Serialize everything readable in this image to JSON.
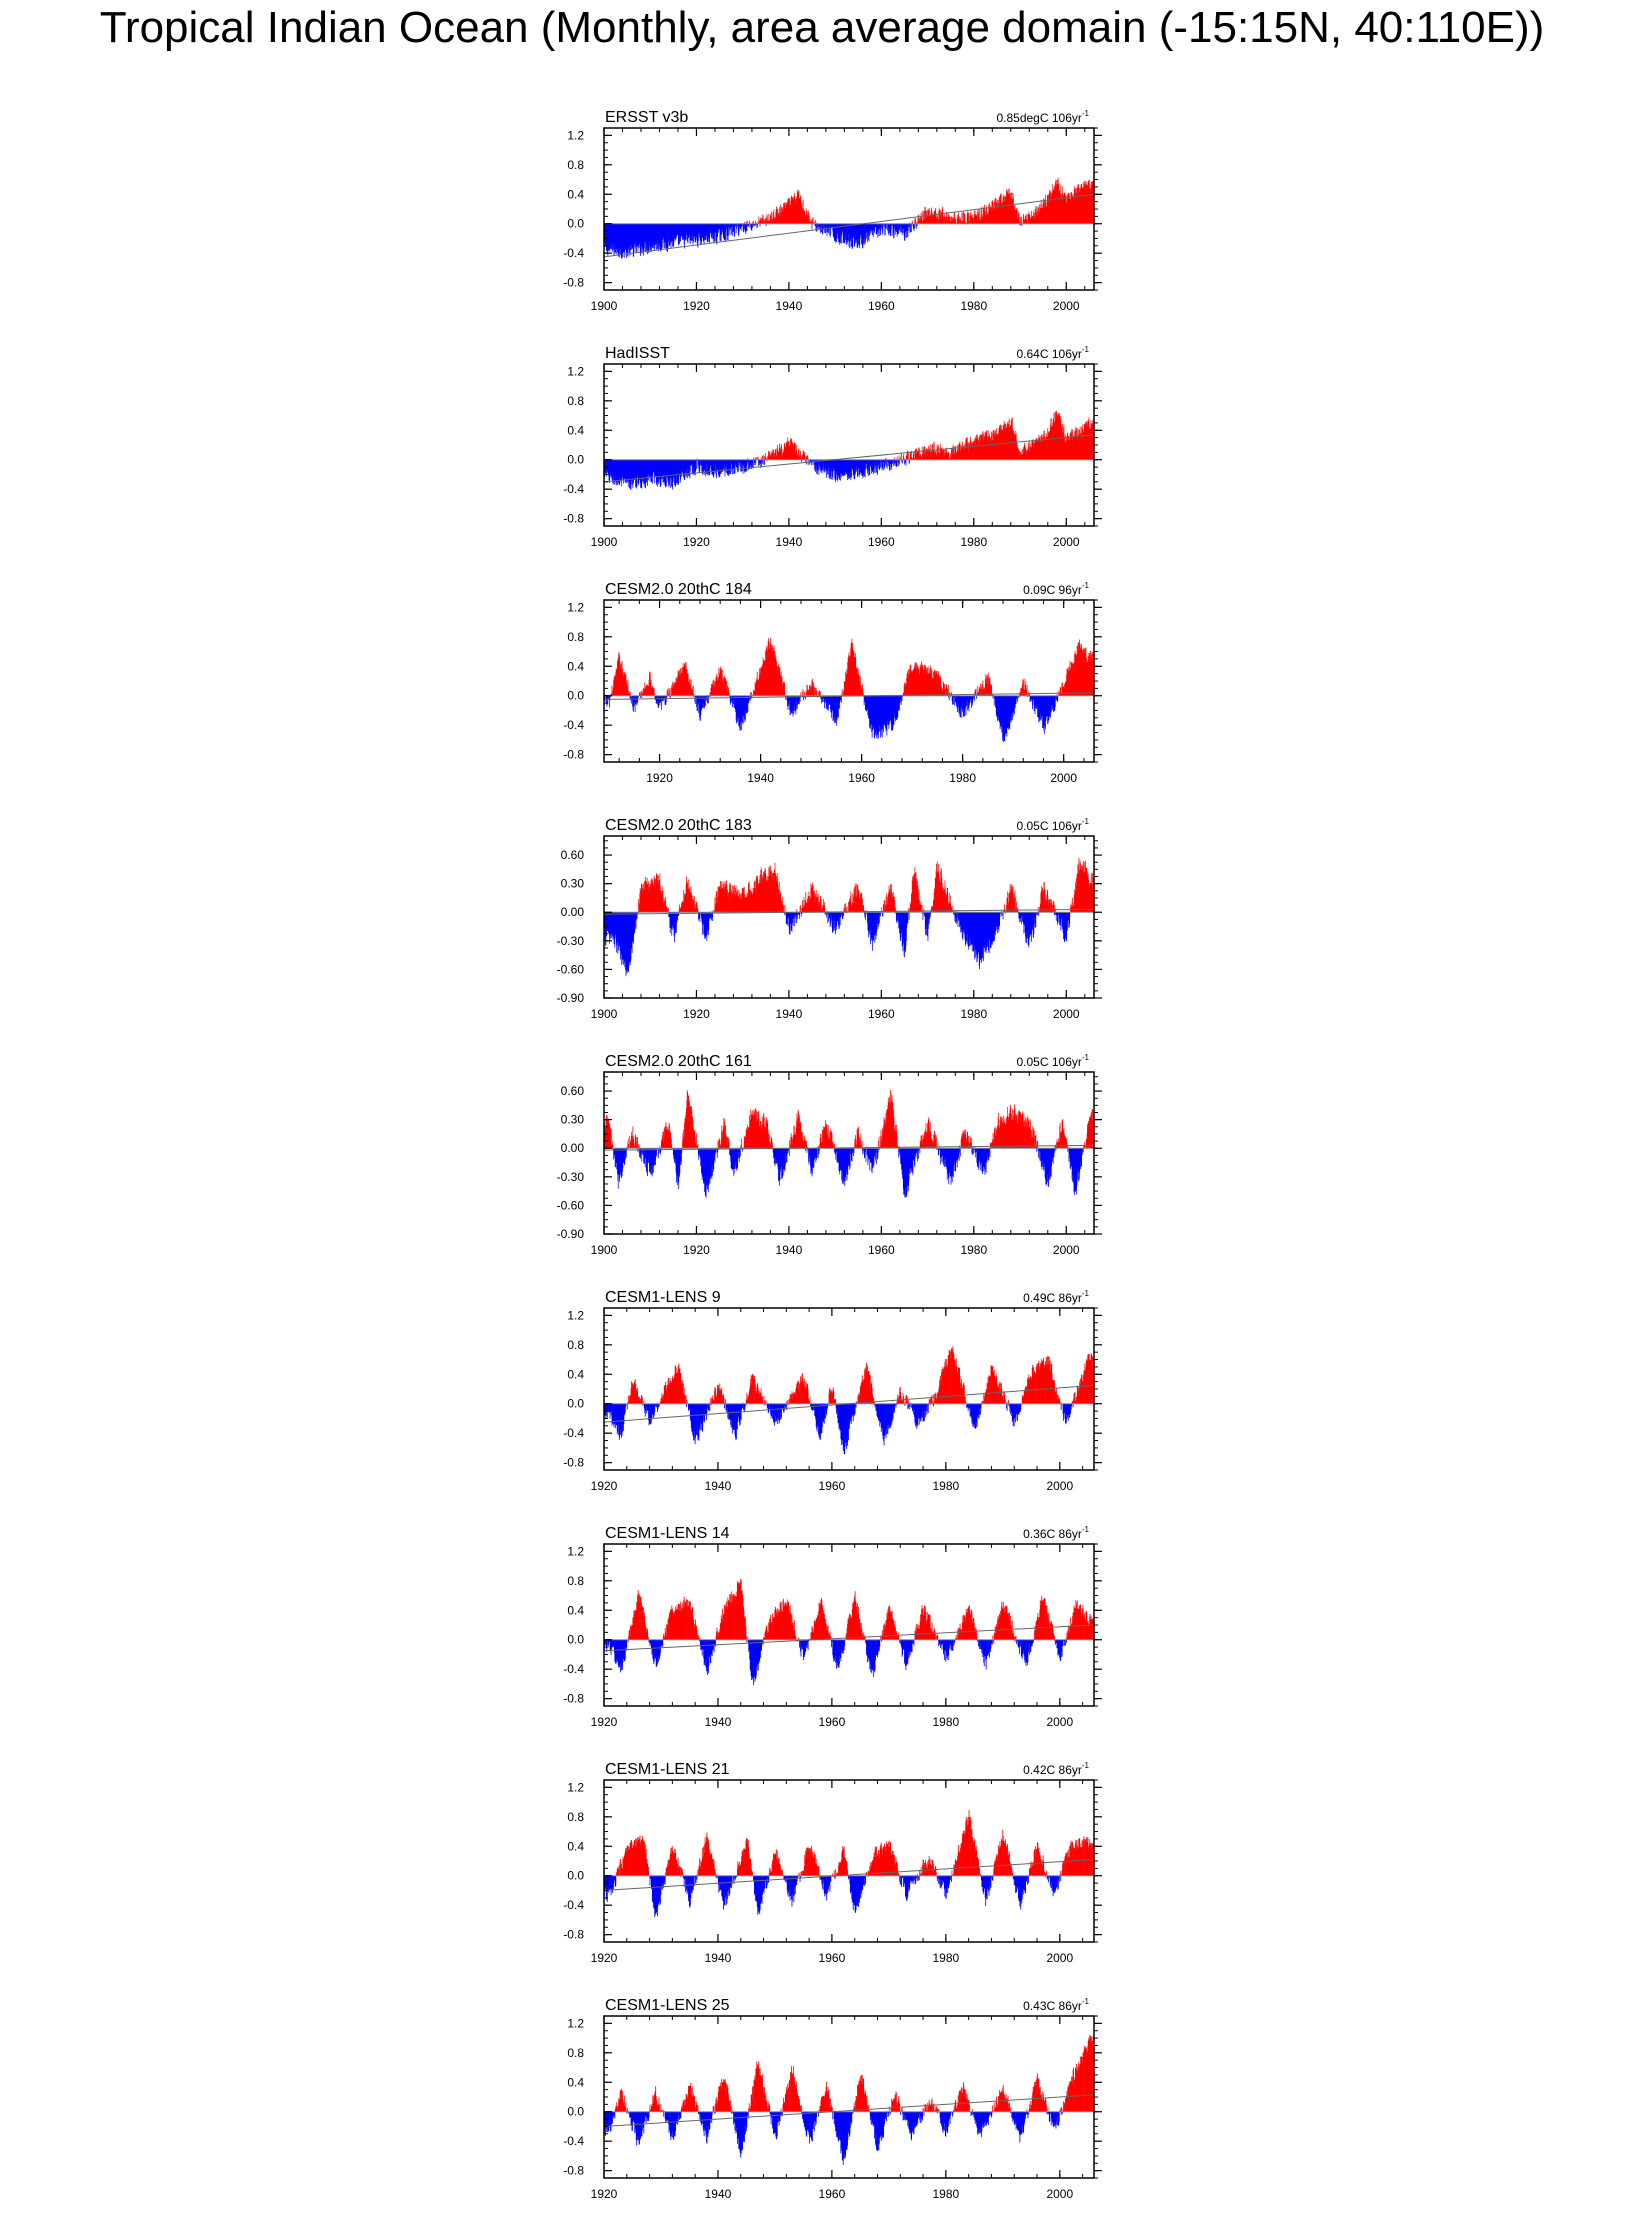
{
  "figure": {
    "title": "Tropical Indian Ocean (Monthly, area average domain (-15:15N, 40:110E))"
  },
  "chart_data": [
    {
      "type": "bar",
      "title": "ERSST v3b",
      "trend": "0.85degC 106yr",
      "trend_exponent": "-1",
      "xlim": [
        1900,
        2006
      ],
      "xticks": [
        "1900",
        "1920",
        "1940",
        "1960",
        "1980",
        "2000"
      ],
      "ylim": [
        -0.9,
        1.3
      ],
      "yticks": [
        "1.2",
        "0.8",
        "0.4",
        "0.0",
        "-0.4",
        "-0.8"
      ],
      "trend_line": {
        "start": -0.45,
        "end": 0.4
      },
      "series_summary": [
        [
          1900,
          -0.4
        ],
        [
          1905,
          -0.45
        ],
        [
          1910,
          -0.35
        ],
        [
          1915,
          -0.3
        ],
        [
          1920,
          -0.25
        ],
        [
          1925,
          -0.2
        ],
        [
          1930,
          -0.05
        ],
        [
          1935,
          0.05
        ],
        [
          1940,
          0.3
        ],
        [
          1942,
          0.45
        ],
        [
          1945,
          0.0
        ],
        [
          1950,
          -0.2
        ],
        [
          1955,
          -0.3
        ],
        [
          1960,
          -0.1
        ],
        [
          1965,
          -0.15
        ],
        [
          1970,
          0.2
        ],
        [
          1975,
          0.1
        ],
        [
          1980,
          0.1
        ],
        [
          1985,
          0.3
        ],
        [
          1988,
          0.5
        ],
        [
          1990,
          0.0
        ],
        [
          1995,
          0.3
        ],
        [
          1998,
          0.65
        ],
        [
          2000,
          0.4
        ],
        [
          2005,
          0.6
        ]
      ],
      "colors": {
        "positive": "#ff0000",
        "negative": "#0000ff"
      }
    },
    {
      "type": "bar",
      "title": "HadISST",
      "trend": "0.64C 106yr",
      "trend_exponent": "-1",
      "xlim": [
        1900,
        2006
      ],
      "xticks": [
        "1900",
        "1920",
        "1940",
        "1960",
        "1980",
        "2000"
      ],
      "ylim": [
        -0.9,
        1.3
      ],
      "yticks": [
        "1.2",
        "0.8",
        "0.4",
        "0.0",
        "-0.4",
        "-0.8"
      ],
      "trend_line": {
        "start": -0.3,
        "end": 0.34
      },
      "series_summary": [
        [
          1900,
          -0.25
        ],
        [
          1905,
          -0.4
        ],
        [
          1910,
          -0.3
        ],
        [
          1915,
          -0.35
        ],
        [
          1920,
          -0.1
        ],
        [
          1925,
          -0.2
        ],
        [
          1930,
          -0.1
        ],
        [
          1935,
          0.0
        ],
        [
          1940,
          0.25
        ],
        [
          1945,
          -0.1
        ],
        [
          1950,
          -0.25
        ],
        [
          1955,
          -0.2
        ],
        [
          1960,
          -0.1
        ],
        [
          1965,
          0.0
        ],
        [
          1970,
          0.2
        ],
        [
          1975,
          0.1
        ],
        [
          1980,
          0.3
        ],
        [
          1985,
          0.4
        ],
        [
          1988,
          0.6
        ],
        [
          1990,
          0.1
        ],
        [
          1995,
          0.35
        ],
        [
          1998,
          0.75
        ],
        [
          2000,
          0.3
        ],
        [
          2005,
          0.55
        ]
      ],
      "colors": {
        "positive": "#ff0000",
        "negative": "#0000ff"
      }
    },
    {
      "type": "bar",
      "title": "CESM2.0 20thC 184",
      "trend": "0.09C 96yr",
      "trend_exponent": "-1",
      "xlim": [
        1909,
        2006
      ],
      "xticks": [
        "1920",
        "1940",
        "1960",
        "1980",
        "2000"
      ],
      "ylim": [
        -0.9,
        1.3
      ],
      "yticks": [
        "1.2",
        "0.8",
        "0.4",
        "0.0",
        "-0.4",
        "-0.8"
      ],
      "trend_line": {
        "start": -0.05,
        "end": 0.04
      },
      "series_summary": [
        [
          1910,
          -0.1
        ],
        [
          1912,
          0.6
        ],
        [
          1915,
          -0.2
        ],
        [
          1918,
          0.3
        ],
        [
          1920,
          -0.2
        ],
        [
          1925,
          0.5
        ],
        [
          1928,
          -0.3
        ],
        [
          1932,
          0.4
        ],
        [
          1936,
          -0.5
        ],
        [
          1942,
          0.9
        ],
        [
          1946,
          -0.3
        ],
        [
          1950,
          0.2
        ],
        [
          1955,
          -0.4
        ],
        [
          1958,
          0.8
        ],
        [
          1962,
          -0.6
        ],
        [
          1966,
          -0.5
        ],
        [
          1970,
          0.5
        ],
        [
          1975,
          0.3
        ],
        [
          1980,
          -0.3
        ],
        [
          1985,
          0.3
        ],
        [
          1988,
          -0.7
        ],
        [
          1992,
          0.2
        ],
        [
          1996,
          -0.5
        ],
        [
          2000,
          0.2
        ],
        [
          2003,
          0.8
        ],
        [
          2005,
          0.6
        ]
      ],
      "colors": {
        "positive": "#ff0000",
        "negative": "#0000ff"
      }
    },
    {
      "type": "bar",
      "title": "CESM2.0 20thC 183",
      "trend": "0.05C 106yr",
      "trend_exponent": "-1",
      "xlim": [
        1900,
        2006
      ],
      "xticks": [
        "1900",
        "1920",
        "1940",
        "1960",
        "1980",
        "2000"
      ],
      "ylim": [
        -0.9,
        0.8
      ],
      "yticks": [
        "0.60",
        "0.30",
        "0.00",
        "-0.30",
        "-0.60",
        "-0.90"
      ],
      "trend_line": {
        "start": -0.02,
        "end": 0.03
      },
      "series_summary": [
        [
          1902,
          -0.3
        ],
        [
          1905,
          -0.75
        ],
        [
          1908,
          0.3
        ],
        [
          1912,
          0.4
        ],
        [
          1915,
          -0.3
        ],
        [
          1918,
          0.4
        ],
        [
          1922,
          -0.3
        ],
        [
          1925,
          0.3
        ],
        [
          1930,
          0.2
        ],
        [
          1934,
          0.45
        ],
        [
          1937,
          0.5
        ],
        [
          1940,
          -0.2
        ],
        [
          1945,
          0.3
        ],
        [
          1950,
          -0.2
        ],
        [
          1955,
          0.3
        ],
        [
          1958,
          -0.4
        ],
        [
          1962,
          0.3
        ],
        [
          1965,
          -0.5
        ],
        [
          1967,
          0.5
        ],
        [
          1970,
          -0.3
        ],
        [
          1972,
          0.55
        ],
        [
          1978,
          -0.3
        ],
        [
          1981,
          -0.6
        ],
        [
          1985,
          -0.2
        ],
        [
          1988,
          0.3
        ],
        [
          1992,
          -0.4
        ],
        [
          1995,
          0.3
        ],
        [
          2000,
          -0.3
        ],
        [
          2003,
          0.65
        ],
        [
          2005,
          0.4
        ]
      ],
      "colors": {
        "positive": "#ff0000",
        "negative": "#0000ff"
      }
    },
    {
      "type": "bar",
      "title": "CESM2.0 20thC 161",
      "trend": "0.05C 106yr",
      "trend_exponent": "-1",
      "xlim": [
        1900,
        2006
      ],
      "xticks": [
        "1900",
        "1920",
        "1940",
        "1960",
        "1980",
        "2000"
      ],
      "ylim": [
        -0.9,
        0.8
      ],
      "yticks": [
        "0.60",
        "0.30",
        "0.00",
        "-0.30",
        "-0.60",
        "-0.90"
      ],
      "trend_line": {
        "start": -0.02,
        "end": 0.03
      },
      "series_summary": [
        [
          1901,
          0.3
        ],
        [
          1903,
          -0.4
        ],
        [
          1906,
          0.2
        ],
        [
          1910,
          -0.3
        ],
        [
          1914,
          0.3
        ],
        [
          1916,
          -0.5
        ],
        [
          1918,
          0.7
        ],
        [
          1922,
          -0.55
        ],
        [
          1926,
          0.3
        ],
        [
          1928,
          -0.3
        ],
        [
          1932,
          0.45
        ],
        [
          1935,
          0.3
        ],
        [
          1938,
          -0.4
        ],
        [
          1942,
          0.4
        ],
        [
          1945,
          -0.3
        ],
        [
          1948,
          0.3
        ],
        [
          1952,
          -0.4
        ],
        [
          1955,
          0.2
        ],
        [
          1958,
          -0.3
        ],
        [
          1962,
          0.65
        ],
        [
          1965,
          -0.55
        ],
        [
          1970,
          0.3
        ],
        [
          1975,
          -0.4
        ],
        [
          1978,
          0.2
        ],
        [
          1982,
          -0.3
        ],
        [
          1985,
          0.3
        ],
        [
          1988,
          0.45
        ],
        [
          1992,
          0.3
        ],
        [
          1996,
          -0.4
        ],
        [
          1999,
          0.3
        ],
        [
          2002,
          -0.55
        ],
        [
          2005,
          0.4
        ]
      ],
      "colors": {
        "positive": "#ff0000",
        "negative": "#0000ff"
      }
    },
    {
      "type": "bar",
      "title": "CESM1-LENS 9",
      "trend": "0.49C 86yr",
      "trend_exponent": "-1",
      "xlim": [
        1920,
        2006
      ],
      "xticks": [
        "1920",
        "1940",
        "1960",
        "1980",
        "2000"
      ],
      "ylim": [
        -0.9,
        1.3
      ],
      "yticks": [
        "1.2",
        "0.8",
        "0.4",
        "0.0",
        "-0.4",
        "-0.8"
      ],
      "trend_line": {
        "start": -0.25,
        "end": 0.25
      },
      "series_summary": [
        [
          1921,
          -0.2
        ],
        [
          1923,
          -0.5
        ],
        [
          1925,
          0.4
        ],
        [
          1928,
          -0.3
        ],
        [
          1931,
          0.3
        ],
        [
          1933,
          0.6
        ],
        [
          1936,
          -0.6
        ],
        [
          1940,
          0.3
        ],
        [
          1943,
          -0.5
        ],
        [
          1946,
          0.4
        ],
        [
          1950,
          -0.3
        ],
        [
          1955,
          0.4
        ],
        [
          1958,
          -0.5
        ],
        [
          1960,
          0.3
        ],
        [
          1962,
          -0.8
        ],
        [
          1966,
          0.6
        ],
        [
          1969,
          -0.6
        ],
        [
          1972,
          0.2
        ],
        [
          1975,
          -0.3
        ],
        [
          1978,
          0.1
        ],
        [
          1981,
          0.9
        ],
        [
          1985,
          -0.4
        ],
        [
          1988,
          0.6
        ],
        [
          1992,
          -0.3
        ],
        [
          1995,
          0.5
        ],
        [
          1998,
          0.7
        ],
        [
          2001,
          -0.3
        ],
        [
          2005,
          0.7
        ]
      ],
      "colors": {
        "positive": "#ff0000",
        "negative": "#0000ff"
      }
    },
    {
      "type": "bar",
      "title": "CESM1-LENS 14",
      "trend": "0.36C 86yr",
      "trend_exponent": "-1",
      "xlim": [
        1920,
        2006
      ],
      "xticks": [
        "1920",
        "1940",
        "1960",
        "1980",
        "2000"
      ],
      "ylim": [
        -0.9,
        1.3
      ],
      "yticks": [
        "1.2",
        "0.8",
        "0.4",
        "0.0",
        "-0.4",
        "-0.8"
      ],
      "trend_line": {
        "start": -0.15,
        "end": 0.2
      },
      "series_summary": [
        [
          1921,
          -0.1
        ],
        [
          1923,
          -0.5
        ],
        [
          1926,
          0.7
        ],
        [
          1929,
          -0.4
        ],
        [
          1932,
          0.5
        ],
        [
          1935,
          0.6
        ],
        [
          1938,
          -0.5
        ],
        [
          1941,
          0.5
        ],
        [
          1944,
          0.9
        ],
        [
          1946,
          -0.7
        ],
        [
          1949,
          0.3
        ],
        [
          1952,
          0.6
        ],
        [
          1955,
          -0.3
        ],
        [
          1958,
          0.6
        ],
        [
          1961,
          -0.5
        ],
        [
          1964,
          0.7
        ],
        [
          1967,
          -0.6
        ],
        [
          1970,
          0.5
        ],
        [
          1973,
          -0.4
        ],
        [
          1976,
          0.5
        ],
        [
          1980,
          -0.3
        ],
        [
          1984,
          0.5
        ],
        [
          1987,
          -0.4
        ],
        [
          1990,
          0.6
        ],
        [
          1994,
          -0.4
        ],
        [
          1997,
          0.7
        ],
        [
          2000,
          -0.3
        ],
        [
          2003,
          0.6
        ],
        [
          2005,
          0.3
        ]
      ],
      "colors": {
        "positive": "#ff0000",
        "negative": "#0000ff"
      }
    },
    {
      "type": "bar",
      "title": "CESM1-LENS 21",
      "trend": "0.42C 86yr",
      "trend_exponent": "-1",
      "xlim": [
        1920,
        2006
      ],
      "xticks": [
        "1920",
        "1940",
        "1960",
        "1980",
        "2000"
      ],
      "ylim": [
        -0.9,
        1.3
      ],
      "yticks": [
        "1.2",
        "0.8",
        "0.4",
        "0.0",
        "-0.4",
        "-0.8"
      ],
      "trend_line": {
        "start": -0.2,
        "end": 0.22
      },
      "series_summary": [
        [
          1921,
          -0.3
        ],
        [
          1924,
          0.4
        ],
        [
          1927,
          0.6
        ],
        [
          1929,
          -0.7
        ],
        [
          1932,
          0.5
        ],
        [
          1935,
          -0.4
        ],
        [
          1938,
          0.6
        ],
        [
          1941,
          -0.5
        ],
        [
          1945,
          0.6
        ],
        [
          1947,
          -0.6
        ],
        [
          1950,
          0.4
        ],
        [
          1953,
          -0.4
        ],
        [
          1956,
          0.5
        ],
        [
          1959,
          -0.3
        ],
        [
          1962,
          0.4
        ],
        [
          1964,
          -0.6
        ],
        [
          1967,
          0.3
        ],
        [
          1970,
          0.5
        ],
        [
          1973,
          -0.3
        ],
        [
          1977,
          0.3
        ],
        [
          1980,
          -0.3
        ],
        [
          1984,
          0.95
        ],
        [
          1987,
          -0.4
        ],
        [
          1990,
          0.7
        ],
        [
          1993,
          -0.5
        ],
        [
          1996,
          0.5
        ],
        [
          1999,
          -0.3
        ],
        [
          2002,
          0.5
        ],
        [
          2005,
          0.5
        ]
      ],
      "colors": {
        "positive": "#ff0000",
        "negative": "#0000ff"
      }
    },
    {
      "type": "bar",
      "title": "CESM1-LENS 25",
      "trend": "0.43C 86yr",
      "trend_exponent": "-1",
      "xlim": [
        1920,
        2006
      ],
      "xticks": [
        "1920",
        "1940",
        "1960",
        "1980",
        "2000"
      ],
      "ylim": [
        -0.9,
        1.3
      ],
      "yticks": [
        "1.2",
        "0.8",
        "0.4",
        "0.0",
        "-0.4",
        "-0.8"
      ],
      "trend_line": {
        "start": -0.2,
        "end": 0.23
      },
      "series_summary": [
        [
          1921,
          -0.3
        ],
        [
          1923,
          0.3
        ],
        [
          1926,
          -0.5
        ],
        [
          1929,
          0.3
        ],
        [
          1932,
          -0.4
        ],
        [
          1935,
          0.4
        ],
        [
          1938,
          -0.4
        ],
        [
          1941,
          0.6
        ],
        [
          1944,
          -0.7
        ],
        [
          1947,
          0.8
        ],
        [
          1950,
          -0.4
        ],
        [
          1953,
          0.7
        ],
        [
          1956,
          -0.5
        ],
        [
          1959,
          0.4
        ],
        [
          1962,
          -0.8
        ],
        [
          1965,
          0.6
        ],
        [
          1968,
          -0.6
        ],
        [
          1971,
          0.3
        ],
        [
          1974,
          -0.4
        ],
        [
          1977,
          0.2
        ],
        [
          1980,
          -0.3
        ],
        [
          1983,
          0.4
        ],
        [
          1986,
          -0.4
        ],
        [
          1990,
          0.4
        ],
        [
          1993,
          -0.4
        ],
        [
          1996,
          0.5
        ],
        [
          1999,
          -0.3
        ],
        [
          2002,
          0.5
        ],
        [
          2005,
          1.1
        ]
      ],
      "colors": {
        "positive": "#ff0000",
        "negative": "#0000ff"
      }
    }
  ]
}
